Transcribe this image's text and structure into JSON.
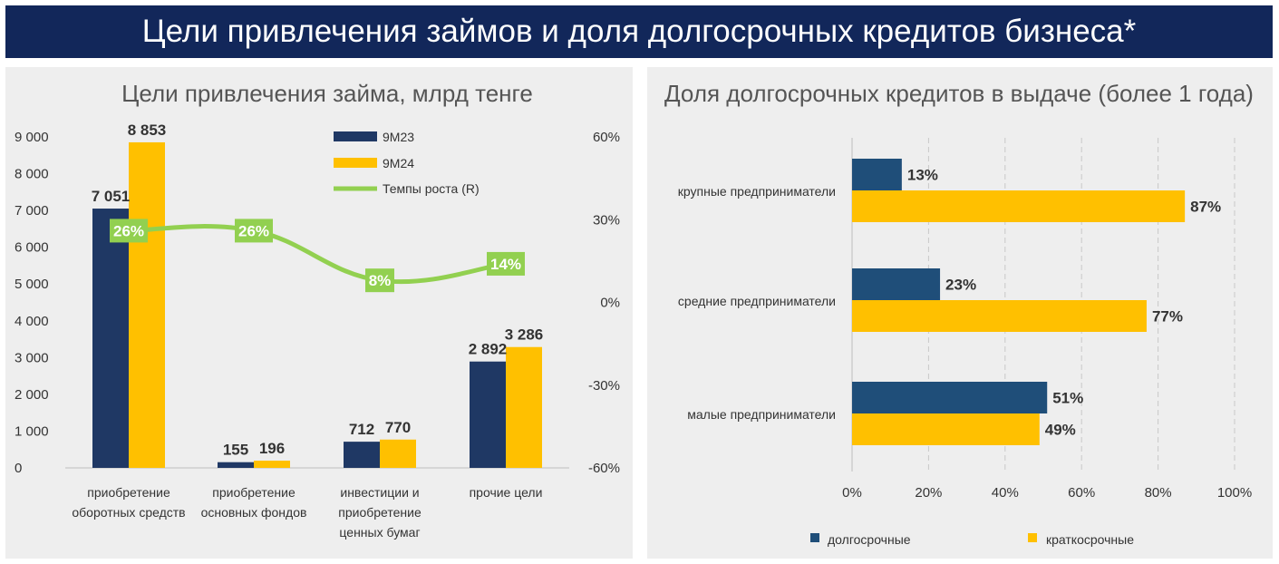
{
  "banner": {
    "title": "Цели привлечения займов и доля долгосрочных кредитов бизнеса*"
  },
  "colors": {
    "navy": "#1f3864",
    "gold": "#ffc000",
    "green": "#92d050",
    "banner": "#12275a",
    "panel": "#eeeeee",
    "barblue": "#1f4e79"
  },
  "chart_data": [
    {
      "type": "bar",
      "title": "Цели привлечения займа, млрд тенге",
      "categories": [
        [
          "приобретение",
          "оборотных средств"
        ],
        [
          "приобретение",
          "основных фондов"
        ],
        [
          "инвестиции и",
          "приобретение",
          "ценных бумаг"
        ],
        [
          "прочие цели"
        ]
      ],
      "series": [
        {
          "name": "9М23",
          "values": [
            7051,
            155,
            712,
            2892
          ],
          "labels": [
            "7 051",
            "155",
            "712",
            "2 892"
          ]
        },
        {
          "name": "9М24",
          "values": [
            8853,
            196,
            770,
            3286
          ],
          "labels": [
            "8 853",
            "196",
            "770",
            "3 286"
          ]
        }
      ],
      "line_series": {
        "name": "Темпы роста (R)",
        "values": [
          26,
          26,
          8,
          14
        ],
        "labels": [
          "26%",
          "26%",
          "8%",
          "14%"
        ]
      },
      "ylim": [
        0,
        9000
      ],
      "yticks": [
        "0",
        "1 000",
        "2 000",
        "3 000",
        "4 000",
        "5 000",
        "6 000",
        "7 000",
        "8 000",
        "9 000"
      ],
      "y2lim": [
        -60,
        60
      ],
      "y2ticks": [
        "-60%",
        "-30%",
        "0%",
        "30%",
        "60%"
      ],
      "legend": "top-right"
    },
    {
      "type": "bar",
      "orientation": "horizontal",
      "title": "Доля долгосрочных кредитов в выдаче (более 1 года)",
      "categories": [
        "крупные предприниматели",
        "средние предприниматели",
        "малые предприниматели"
      ],
      "series": [
        {
          "name": "долгосрочные",
          "values": [
            13,
            23,
            51
          ],
          "labels": [
            "13%",
            "23%",
            "51%"
          ]
        },
        {
          "name": "краткосрочные",
          "values": [
            87,
            77,
            49
          ],
          "labels": [
            "87%",
            "77%",
            "49%"
          ]
        }
      ],
      "xlim": [
        0,
        100
      ],
      "xticks": [
        "0%",
        "20%",
        "40%",
        "60%",
        "80%",
        "100%"
      ],
      "legend": "bottom"
    }
  ]
}
